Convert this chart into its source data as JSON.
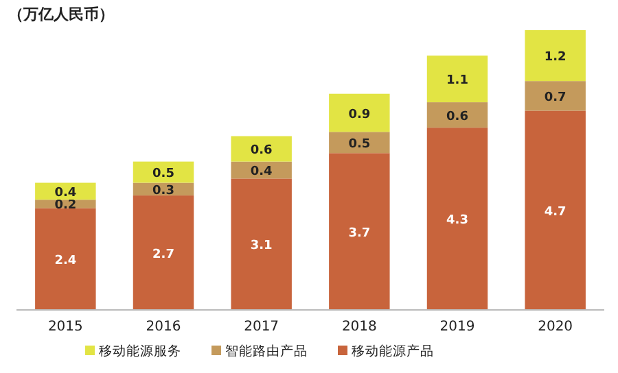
{
  "chart_data": {
    "type": "bar",
    "stacked": true,
    "data_labels": true,
    "legend": "bottom",
    "ylabel": "（万亿人民币）",
    "categories": [
      "2015",
      "2016",
      "2017",
      "2018",
      "2019",
      "2020"
    ],
    "series": [
      {
        "name": "移动能源产品",
        "color": "#c8643c",
        "values": [
          2.4,
          2.7,
          3.1,
          3.7,
          4.3,
          4.7
        ]
      },
      {
        "name": "智能路由产品",
        "color": "#c49a5c",
        "values": [
          0.2,
          0.3,
          0.4,
          0.5,
          0.6,
          0.7
        ]
      },
      {
        "name": "移动能源服务",
        "color": "#e2e444",
        "values": [
          0.4,
          0.5,
          0.6,
          0.9,
          1.1,
          1.2
        ]
      }
    ]
  }
}
